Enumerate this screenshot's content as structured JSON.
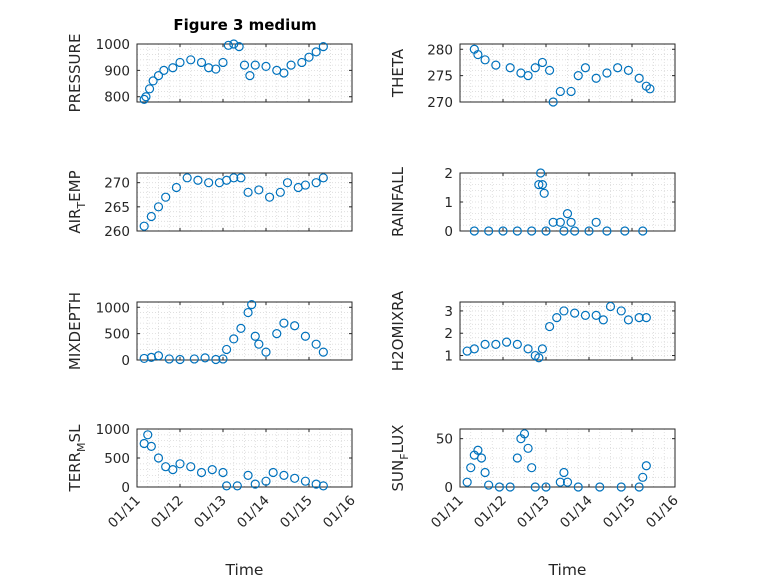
{
  "figure": {
    "title": "Figure 3 medium",
    "marker_color": "#0072BD",
    "axis_color": "#262626",
    "grid_color": "#d9d9d9"
  },
  "chart_data": [
    {
      "type": "scatter",
      "ylabel": "PRESSURE",
      "xlim": [
        "01/11",
        "01/16"
      ],
      "ylim": [
        780,
        1000
      ],
      "yticks": [
        "800",
        "900",
        "1000"
      ],
      "xticks": [],
      "xlabel": "",
      "grid": true,
      "points": [
        {
          "x": "01/11 04:00",
          "y": 790
        },
        {
          "x": "01/11 05:00",
          "y": 800
        },
        {
          "x": "01/11 07:00",
          "y": 830
        },
        {
          "x": "01/11 09:00",
          "y": 860
        },
        {
          "x": "01/11 12:00",
          "y": 880
        },
        {
          "x": "01/11 15:00",
          "y": 900
        },
        {
          "x": "01/11 20:00",
          "y": 910
        },
        {
          "x": "01/12 00:00",
          "y": 930
        },
        {
          "x": "01/12 06:00",
          "y": 940
        },
        {
          "x": "01/12 12:00",
          "y": 930
        },
        {
          "x": "01/12 16:00",
          "y": 910
        },
        {
          "x": "01/12 20:00",
          "y": 905
        },
        {
          "x": "01/13 00:00",
          "y": 930
        },
        {
          "x": "01/13 03:00",
          "y": 995
        },
        {
          "x": "01/13 06:00",
          "y": 1000
        },
        {
          "x": "01/13 09:00",
          "y": 990
        },
        {
          "x": "01/13 12:00",
          "y": 920
        },
        {
          "x": "01/13 15:00",
          "y": 880
        },
        {
          "x": "01/13 18:00",
          "y": 920
        },
        {
          "x": "01/14 00:00",
          "y": 915
        },
        {
          "x": "01/14 06:00",
          "y": 900
        },
        {
          "x": "01/14 10:00",
          "y": 890
        },
        {
          "x": "01/14 14:00",
          "y": 920
        },
        {
          "x": "01/14 20:00",
          "y": 930
        },
        {
          "x": "01/15 00:00",
          "y": 950
        },
        {
          "x": "01/15 04:00",
          "y": 970
        },
        {
          "x": "01/15 08:00",
          "y": 990
        }
      ]
    },
    {
      "type": "scatter",
      "ylabel": "THETA",
      "xlim": [
        "01/11",
        "01/16"
      ],
      "ylim": [
        270,
        281
      ],
      "yticks": [
        "270",
        "275",
        "280"
      ],
      "xticks": [],
      "xlabel": "",
      "grid": true,
      "points": [
        {
          "x": "01/11 08:00",
          "y": 280
        },
        {
          "x": "01/11 10:00",
          "y": 279
        },
        {
          "x": "01/11 14:00",
          "y": 278
        },
        {
          "x": "01/11 20:00",
          "y": 277
        },
        {
          "x": "01/12 04:00",
          "y": 276.5
        },
        {
          "x": "01/12 10:00",
          "y": 275.5
        },
        {
          "x": "01/12 14:00",
          "y": 275
        },
        {
          "x": "01/12 18:00",
          "y": 276.5
        },
        {
          "x": "01/12 22:00",
          "y": 277.5
        },
        {
          "x": "01/13 02:00",
          "y": 276
        },
        {
          "x": "01/13 04:00",
          "y": 270
        },
        {
          "x": "01/13 08:00",
          "y": 272
        },
        {
          "x": "01/13 14:00",
          "y": 272
        },
        {
          "x": "01/13 18:00",
          "y": 275
        },
        {
          "x": "01/13 22:00",
          "y": 276.5
        },
        {
          "x": "01/14 04:00",
          "y": 274.5
        },
        {
          "x": "01/14 10:00",
          "y": 275.5
        },
        {
          "x": "01/14 16:00",
          "y": 276.5
        },
        {
          "x": "01/14 22:00",
          "y": 276
        },
        {
          "x": "01/15 04:00",
          "y": 274.5
        },
        {
          "x": "01/15 08:00",
          "y": 273
        },
        {
          "x": "01/15 10:00",
          "y": 272.5
        }
      ]
    },
    {
      "type": "scatter",
      "ylabel": "AIR_TEMP",
      "xlim": [
        "01/11",
        "01/16"
      ],
      "ylim": [
        260,
        272
      ],
      "yticks": [
        "260",
        "265",
        "270"
      ],
      "xticks": [],
      "xlabel": "",
      "grid": true,
      "points": [
        {
          "x": "01/11 04:00",
          "y": 261
        },
        {
          "x": "01/11 08:00",
          "y": 263
        },
        {
          "x": "01/11 12:00",
          "y": 265
        },
        {
          "x": "01/11 16:00",
          "y": 267
        },
        {
          "x": "01/11 22:00",
          "y": 269
        },
        {
          "x": "01/12 04:00",
          "y": 271
        },
        {
          "x": "01/12 10:00",
          "y": 270.5
        },
        {
          "x": "01/12 16:00",
          "y": 270
        },
        {
          "x": "01/12 22:00",
          "y": 270
        },
        {
          "x": "01/13 02:00",
          "y": 270.5
        },
        {
          "x": "01/13 06:00",
          "y": 271
        },
        {
          "x": "01/13 10:00",
          "y": 271
        },
        {
          "x": "01/13 14:00",
          "y": 268
        },
        {
          "x": "01/13 20:00",
          "y": 268.5
        },
        {
          "x": "01/14 02:00",
          "y": 267
        },
        {
          "x": "01/14 08:00",
          "y": 268
        },
        {
          "x": "01/14 12:00",
          "y": 270
        },
        {
          "x": "01/14 18:00",
          "y": 269
        },
        {
          "x": "01/14 22:00",
          "y": 269.5
        },
        {
          "x": "01/15 04:00",
          "y": 270
        },
        {
          "x": "01/15 08:00",
          "y": 271
        }
      ]
    },
    {
      "type": "scatter",
      "ylabel": "RAINFALL",
      "xlim": [
        "01/11",
        "01/16"
      ],
      "ylim": [
        0,
        2
      ],
      "yticks": [
        "0",
        "1",
        "2"
      ],
      "xticks": [],
      "xlabel": "",
      "grid": true,
      "points": [
        {
          "x": "01/11 08:00",
          "y": 0
        },
        {
          "x": "01/11 16:00",
          "y": 0
        },
        {
          "x": "01/12 00:00",
          "y": 0
        },
        {
          "x": "01/12 08:00",
          "y": 0
        },
        {
          "x": "01/12 16:00",
          "y": 0
        },
        {
          "x": "01/12 20:00",
          "y": 1.6
        },
        {
          "x": "01/12 21:00",
          "y": 2.0
        },
        {
          "x": "01/12 22:00",
          "y": 1.6
        },
        {
          "x": "01/12 23:00",
          "y": 1.3
        },
        {
          "x": "01/13 00:00",
          "y": 0
        },
        {
          "x": "01/13 04:00",
          "y": 0.3
        },
        {
          "x": "01/13 08:00",
          "y": 0.3
        },
        {
          "x": "01/13 10:00",
          "y": 0
        },
        {
          "x": "01/13 12:00",
          "y": 0.6
        },
        {
          "x": "01/13 14:00",
          "y": 0.3
        },
        {
          "x": "01/13 16:00",
          "y": 0
        },
        {
          "x": "01/14 00:00",
          "y": 0
        },
        {
          "x": "01/14 04:00",
          "y": 0.3
        },
        {
          "x": "01/14 10:00",
          "y": 0
        },
        {
          "x": "01/14 20:00",
          "y": 0
        },
        {
          "x": "01/15 06:00",
          "y": 0
        }
      ]
    },
    {
      "type": "scatter",
      "ylabel": "MIXDEPTH",
      "xlim": [
        "01/11",
        "01/16"
      ],
      "ylim": [
        0,
        1100
      ],
      "yticks": [
        "0",
        "500",
        "1000"
      ],
      "xticks": [],
      "xlabel": "",
      "grid": true,
      "points": [
        {
          "x": "01/11 04:00",
          "y": 30
        },
        {
          "x": "01/11 08:00",
          "y": 50
        },
        {
          "x": "01/11 12:00",
          "y": 80
        },
        {
          "x": "01/11 18:00",
          "y": 20
        },
        {
          "x": "01/12 00:00",
          "y": 10
        },
        {
          "x": "01/12 08:00",
          "y": 20
        },
        {
          "x": "01/12 14:00",
          "y": 40
        },
        {
          "x": "01/12 20:00",
          "y": 10
        },
        {
          "x": "01/13 00:00",
          "y": 20
        },
        {
          "x": "01/13 02:00",
          "y": 200
        },
        {
          "x": "01/13 06:00",
          "y": 400
        },
        {
          "x": "01/13 10:00",
          "y": 600
        },
        {
          "x": "01/13 14:00",
          "y": 900
        },
        {
          "x": "01/13 16:00",
          "y": 1050
        },
        {
          "x": "01/13 18:00",
          "y": 450
        },
        {
          "x": "01/13 20:00",
          "y": 300
        },
        {
          "x": "01/14 00:00",
          "y": 150
        },
        {
          "x": "01/14 06:00",
          "y": 500
        },
        {
          "x": "01/14 10:00",
          "y": 700
        },
        {
          "x": "01/14 16:00",
          "y": 650
        },
        {
          "x": "01/14 22:00",
          "y": 450
        },
        {
          "x": "01/15 04:00",
          "y": 300
        },
        {
          "x": "01/15 08:00",
          "y": 150
        }
      ]
    },
    {
      "type": "scatter",
      "ylabel": "H2OMIXRA",
      "xlim": [
        "01/11",
        "01/16"
      ],
      "ylim": [
        0.8,
        3.4
      ],
      "yticks": [
        "1",
        "2",
        "3"
      ],
      "xticks": [],
      "xlabel": "",
      "grid": true,
      "points": [
        {
          "x": "01/11 04:00",
          "y": 1.2
        },
        {
          "x": "01/11 08:00",
          "y": 1.3
        },
        {
          "x": "01/11 14:00",
          "y": 1.5
        },
        {
          "x": "01/11 20:00",
          "y": 1.5
        },
        {
          "x": "01/12 02:00",
          "y": 1.6
        },
        {
          "x": "01/12 08:00",
          "y": 1.5
        },
        {
          "x": "01/12 14:00",
          "y": 1.3
        },
        {
          "x": "01/12 18:00",
          "y": 1.0
        },
        {
          "x": "01/12 20:00",
          "y": 0.9
        },
        {
          "x": "01/12 22:00",
          "y": 1.3
        },
        {
          "x": "01/13 02:00",
          "y": 2.3
        },
        {
          "x": "01/13 06:00",
          "y": 2.7
        },
        {
          "x": "01/13 10:00",
          "y": 3.0
        },
        {
          "x": "01/13 16:00",
          "y": 2.9
        },
        {
          "x": "01/13 22:00",
          "y": 2.8
        },
        {
          "x": "01/14 04:00",
          "y": 2.8
        },
        {
          "x": "01/14 08:00",
          "y": 2.6
        },
        {
          "x": "01/14 12:00",
          "y": 3.2
        },
        {
          "x": "01/14 18:00",
          "y": 3.0
        },
        {
          "x": "01/14 22:00",
          "y": 2.6
        },
        {
          "x": "01/15 04:00",
          "y": 2.7
        },
        {
          "x": "01/15 08:00",
          "y": 2.7
        }
      ]
    },
    {
      "type": "scatter",
      "ylabel": "TERR_MSL",
      "xlim": [
        "01/11",
        "01/16"
      ],
      "ylim": [
        0,
        1000
      ],
      "yticks": [
        "0",
        "500",
        "1000"
      ],
      "xticks": [
        "01/11",
        "01/12",
        "01/13",
        "01/14",
        "01/15",
        "01/16"
      ],
      "xlabel": "Time",
      "grid": true,
      "points": [
        {
          "x": "01/11 04:00",
          "y": 750
        },
        {
          "x": "01/11 06:00",
          "y": 900
        },
        {
          "x": "01/11 08:00",
          "y": 700
        },
        {
          "x": "01/11 12:00",
          "y": 500
        },
        {
          "x": "01/11 16:00",
          "y": 350
        },
        {
          "x": "01/11 20:00",
          "y": 300
        },
        {
          "x": "01/12 00:00",
          "y": 400
        },
        {
          "x": "01/12 06:00",
          "y": 350
        },
        {
          "x": "01/12 12:00",
          "y": 250
        },
        {
          "x": "01/12 18:00",
          "y": 300
        },
        {
          "x": "01/13 00:00",
          "y": 250
        },
        {
          "x": "01/13 02:00",
          "y": 20
        },
        {
          "x": "01/13 08:00",
          "y": 20
        },
        {
          "x": "01/13 14:00",
          "y": 200
        },
        {
          "x": "01/13 18:00",
          "y": 50
        },
        {
          "x": "01/14 00:00",
          "y": 100
        },
        {
          "x": "01/14 04:00",
          "y": 250
        },
        {
          "x": "01/14 10:00",
          "y": 200
        },
        {
          "x": "01/14 16:00",
          "y": 150
        },
        {
          "x": "01/14 22:00",
          "y": 100
        },
        {
          "x": "01/15 04:00",
          "y": 50
        },
        {
          "x": "01/15 08:00",
          "y": 20
        }
      ]
    },
    {
      "type": "scatter",
      "ylabel": "SUN_FLUX",
      "xlim": [
        "01/11",
        "01/16"
      ],
      "ylim": [
        0,
        60
      ],
      "yticks": [
        "0",
        "50"
      ],
      "xticks": [
        "01/11",
        "01/12",
        "01/13",
        "01/14",
        "01/15",
        "01/16"
      ],
      "xlabel": "Time",
      "grid": true,
      "points": [
        {
          "x": "01/11 04:00",
          "y": 5
        },
        {
          "x": "01/11 06:00",
          "y": 20
        },
        {
          "x": "01/11 08:00",
          "y": 33
        },
        {
          "x": "01/11 10:00",
          "y": 38
        },
        {
          "x": "01/11 12:00",
          "y": 30
        },
        {
          "x": "01/11 14:00",
          "y": 15
        },
        {
          "x": "01/11 16:00",
          "y": 2
        },
        {
          "x": "01/11 22:00",
          "y": 0
        },
        {
          "x": "01/12 04:00",
          "y": 0
        },
        {
          "x": "01/12 08:00",
          "y": 30
        },
        {
          "x": "01/12 10:00",
          "y": 50
        },
        {
          "x": "01/12 12:00",
          "y": 55
        },
        {
          "x": "01/12 14:00",
          "y": 40
        },
        {
          "x": "01/12 16:00",
          "y": 20
        },
        {
          "x": "01/12 18:00",
          "y": 0
        },
        {
          "x": "01/13 00:00",
          "y": 0
        },
        {
          "x": "01/13 08:00",
          "y": 5
        },
        {
          "x": "01/13 10:00",
          "y": 15
        },
        {
          "x": "01/13 12:00",
          "y": 5
        },
        {
          "x": "01/13 18:00",
          "y": 0
        },
        {
          "x": "01/14 06:00",
          "y": 0
        },
        {
          "x": "01/14 18:00",
          "y": 0
        },
        {
          "x": "01/15 04:00",
          "y": 0
        },
        {
          "x": "01/15 06:00",
          "y": 10
        },
        {
          "x": "01/15 08:00",
          "y": 22
        }
      ]
    }
  ]
}
